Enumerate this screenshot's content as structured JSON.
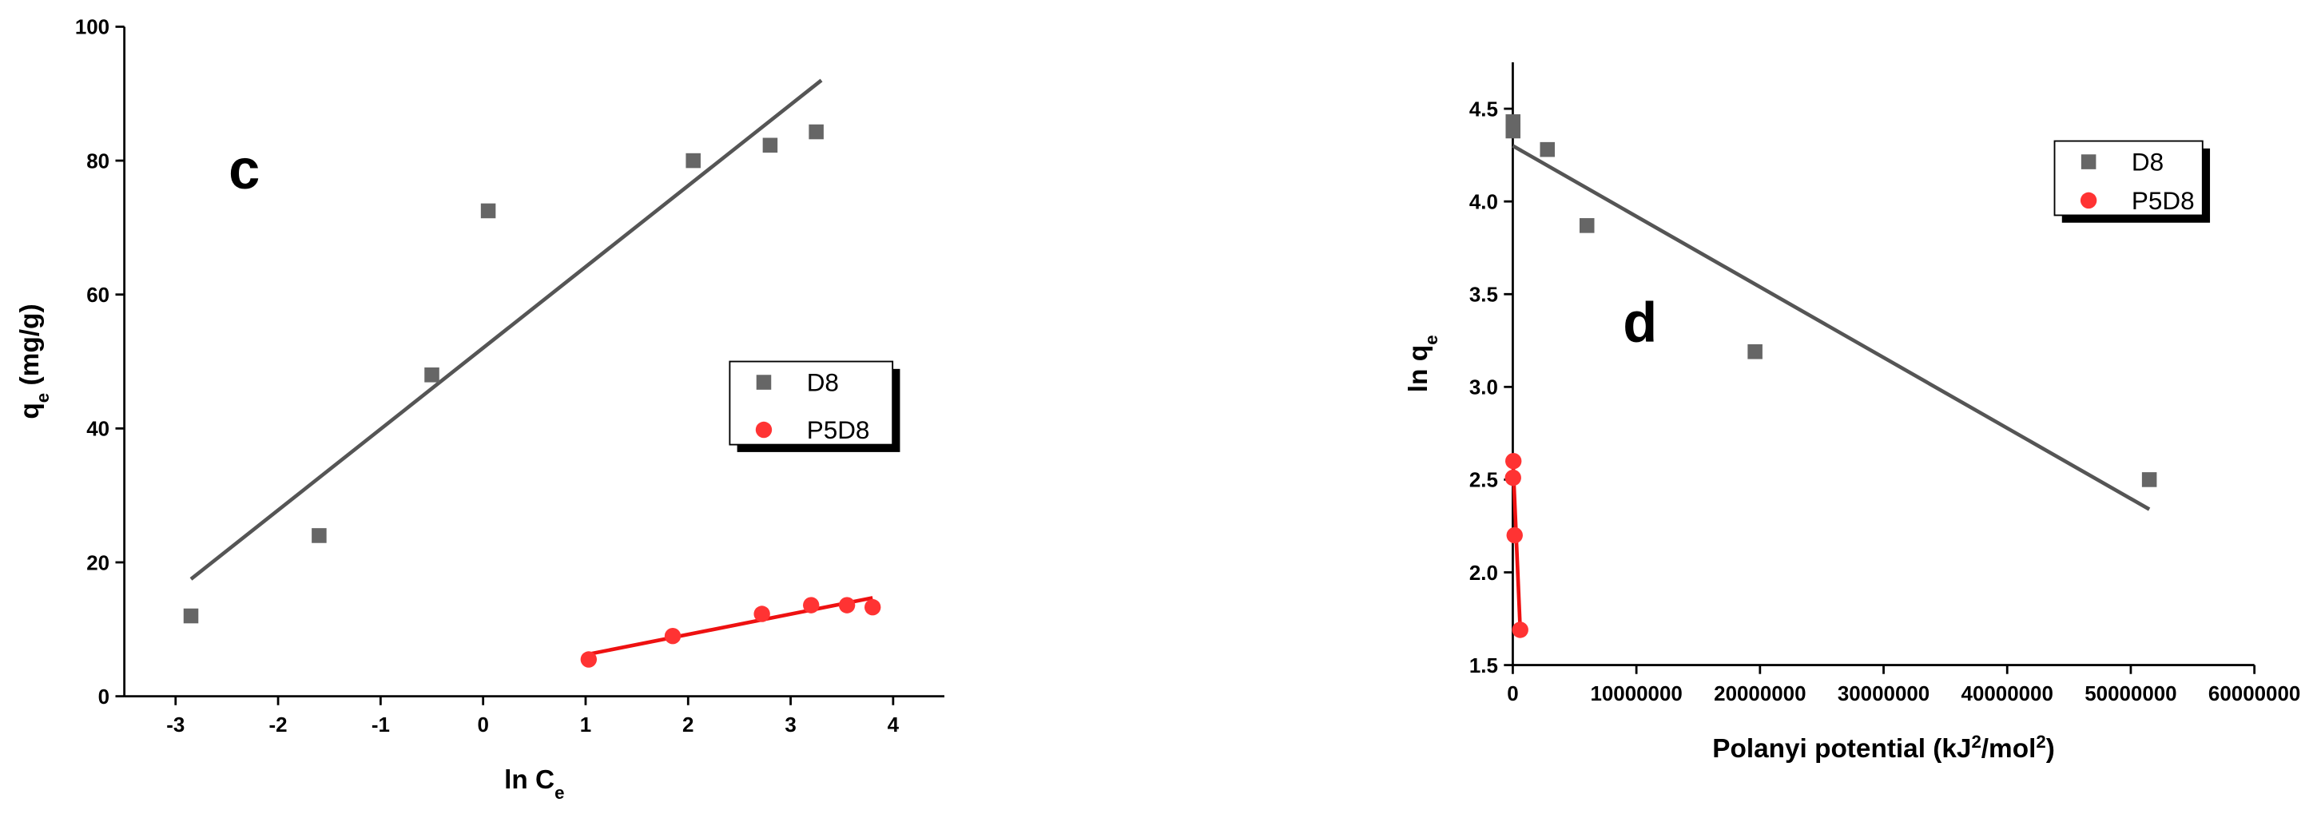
{
  "chart_data": [
    {
      "type": "scatter",
      "annotation": "c",
      "xlabel": [
        "ln C",
        "e"
      ],
      "xlabel_script": "sub",
      "ylabel": [
        "q",
        "e",
        " (mg/g)"
      ],
      "ylabel_script": "sub",
      "xlim": [
        -3.5,
        4.5
      ],
      "xticks": [
        -3,
        -2,
        -1,
        0,
        1,
        2,
        3,
        4
      ],
      "ylim": [
        0,
        100
      ],
      "yticks": [
        0,
        20,
        40,
        60,
        80,
        100
      ],
      "legend": "center right",
      "series": [
        {
          "name": "D8",
          "color": "#666666",
          "marker": "square",
          "x": [
            -2.85,
            -1.6,
            -0.5,
            0.05,
            2.05,
            2.8,
            3.25
          ],
          "values": [
            12,
            24,
            48,
            72.5,
            80,
            82.3,
            84.3
          ],
          "fit": {
            "color": "#555555",
            "x": [
              -2.85,
              3.3
            ],
            "values": [
              17.5,
              92
            ]
          }
        },
        {
          "name": "P5D8",
          "color": "#ff3333",
          "marker": "circle",
          "x": [
            1.03,
            1.85,
            2.72,
            3.2,
            3.55,
            3.8
          ],
          "values": [
            5.5,
            9,
            12.3,
            13.6,
            13.6,
            13.3
          ],
          "fit": {
            "color": "#ee1111",
            "x": [
              1,
              3.8
            ],
            "values": [
              6.2,
              14.7
            ]
          }
        }
      ]
    },
    {
      "type": "scatter",
      "annotation": "d",
      "xlabel": [
        "Polanyi potential (kJ",
        "2",
        "/mol",
        "2",
        ")"
      ],
      "xlabel_script": "super",
      "ylabel": [
        "ln q",
        "e"
      ],
      "ylabel_script": "sub",
      "xlim": [
        0,
        60000000
      ],
      "xticks": [
        0,
        10000000,
        20000000,
        30000000,
        40000000,
        50000000,
        60000000
      ],
      "ylim": [
        1.5,
        4.75
      ],
      "yticks": [
        1.5,
        {
          "value": 2,
          "label": "2.0"
        },
        2.5,
        {
          "value": 3,
          "label": "3.0"
        },
        3.5,
        {
          "value": 4,
          "label": "4.0"
        },
        4.5
      ],
      "legend": "upper right",
      "series": [
        {
          "name": "D8",
          "color": "#666666",
          "marker": "square",
          "x": [
            20000,
            20000,
            2800000,
            6000000,
            19600000,
            51500000
          ],
          "values": [
            4.43,
            4.38,
            4.28,
            3.87,
            3.19,
            2.5
          ],
          "fit": {
            "color": "#555555",
            "x": [
              0,
              51500000
            ],
            "values": [
              4.3,
              2.34
            ]
          }
        },
        {
          "name": "P5D8",
          "color": "#ff3333",
          "marker": "circle",
          "x": [
            50000,
            20000,
            150000,
            600000
          ],
          "values": [
            2.6,
            2.51,
            2.2,
            1.69
          ],
          "fit": {
            "color": "#ee1111",
            "x": [
              0,
              600000
            ],
            "values": [
              2.62,
              1.69
            ]
          }
        }
      ]
    }
  ]
}
